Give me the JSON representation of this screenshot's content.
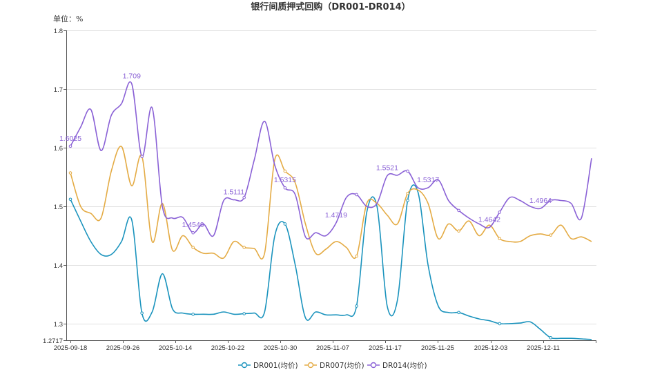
{
  "chart_data": {
    "type": "line",
    "title": "银行间质押式回购（DR001-DR014）",
    "unit_label": "单位：%",
    "x_ticks": [
      "2025-09-18",
      "2025-09-26",
      "2025-10-14",
      "2025-10-22",
      "2025-10-30",
      "2025-11-07",
      "2025-11-17",
      "2025-11-25",
      "2025-12-03",
      "2025-12-11"
    ],
    "y_ticks": [
      "1.8",
      "1.7",
      "1.6",
      "1.5",
      "1.4",
      "1.3",
      "1.2717"
    ],
    "ylim": [
      1.2717,
      1.8
    ],
    "grid": true,
    "legend_position": "bottom",
    "series": [
      {
        "name": "DR001(均价)",
        "color": "#1a93bd",
        "values": [
          1.512,
          1.475,
          1.44,
          1.418,
          1.418,
          1.44,
          1.477,
          1.318,
          1.32,
          1.385,
          1.325,
          1.318,
          1.316,
          1.316,
          1.316,
          1.32,
          1.316,
          1.317,
          1.318,
          1.32,
          1.45,
          1.47,
          1.4,
          1.31,
          1.32,
          1.315,
          1.315,
          1.315,
          1.33,
          1.49,
          1.5,
          1.33,
          1.34,
          1.51,
          1.525,
          1.4,
          1.33,
          1.319,
          1.319,
          1.313,
          1.308,
          1.305,
          1.3,
          1.3,
          1.301,
          1.303,
          1.29,
          1.276,
          1.275,
          1.275,
          1.274,
          1.273
        ],
        "labels": []
      },
      {
        "name": "DR007(均价)",
        "color": "#e4ab44",
        "values": [
          1.557,
          1.5,
          1.488,
          1.48,
          1.56,
          1.602,
          1.535,
          1.585,
          1.44,
          1.505,
          1.425,
          1.45,
          1.43,
          1.42,
          1.42,
          1.412,
          1.44,
          1.43,
          1.428,
          1.42,
          1.58,
          1.56,
          1.54,
          1.47,
          1.42,
          1.427,
          1.44,
          1.43,
          1.415,
          1.505,
          1.505,
          1.485,
          1.47,
          1.522,
          1.528,
          1.505,
          1.445,
          1.47,
          1.458,
          1.475,
          1.45,
          1.468,
          1.445,
          1.44,
          1.44,
          1.45,
          1.453,
          1.451,
          1.468,
          1.445,
          1.448,
          1.44
        ],
        "labels": []
      },
      {
        "name": "DR014(均价)",
        "color": "#8a61d6",
        "values": [
          1.6025,
          1.635,
          1.665,
          1.595,
          1.655,
          1.675,
          1.709,
          1.585,
          1.668,
          1.5,
          1.48,
          1.481,
          1.455,
          1.47,
          1.45,
          1.51,
          1.5111,
          1.515,
          1.58,
          1.645,
          1.57,
          1.5315,
          1.52,
          1.448,
          1.455,
          1.45,
          1.4719,
          1.515,
          1.52,
          1.5,
          1.505,
          1.5521,
          1.553,
          1.56,
          1.532,
          1.5317,
          1.545,
          1.51,
          1.493,
          1.48,
          1.47,
          1.4642,
          1.49,
          1.515,
          1.51,
          1.5,
          1.4964,
          1.51,
          1.51,
          1.505,
          1.48,
          1.582
        ],
        "labels": [
          {
            "index": 0,
            "text": "1.6025"
          },
          {
            "index": 6,
            "text": "1.709"
          },
          {
            "index": 12,
            "text": "1.4549"
          },
          {
            "index": 16,
            "text": "1.5111"
          },
          {
            "index": 21,
            "text": "1.5315"
          },
          {
            "index": 26,
            "text": "1.4719"
          },
          {
            "index": 31,
            "text": "1.5521"
          },
          {
            "index": 35,
            "text": "1.5317"
          },
          {
            "index": 41,
            "text": "1.4642"
          },
          {
            "index": 46,
            "text": "1.4964"
          }
        ]
      }
    ]
  }
}
